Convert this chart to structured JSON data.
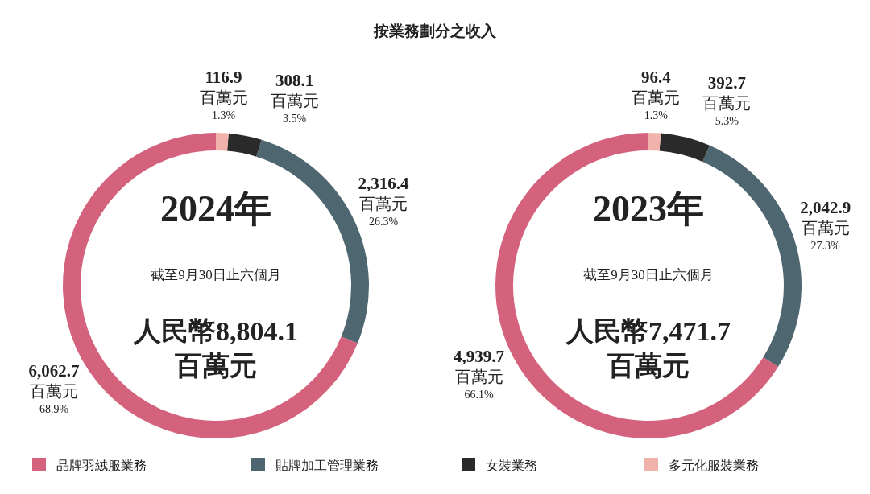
{
  "chart_data": [
    {
      "type": "donut",
      "title": "2024年",
      "subtitle": "截至9月30日止六個月",
      "annotations": [
        "按業務劃分之收入",
        "人民幣8,804.1\n百萬元"
      ],
      "categories": [
        "品牌羽絨服業務",
        "貼牌加工管理業務",
        "女裝業務",
        "多元化服裝業務"
      ],
      "values": [
        6062.7,
        2316.4,
        308.1,
        116.9
      ],
      "value_labels": [
        "6,062.7\n百萬元\n68.9%",
        "2,316.4\n百萬元\n26.3%",
        "308.1\n百萬元\n3.5%",
        "116.9\n百萬元\n1.3%"
      ],
      "colors": [
        "#d4627c",
        "#4e6670",
        "#2a2a2a",
        "#f0b2ab"
      ],
      "legend": "bottom"
    },
    {
      "type": "donut",
      "title": "2023年",
      "subtitle": "截至9月30日止六個月",
      "annotations": [
        "人民幣7,471.7\n百萬元"
      ],
      "categories": [
        null,
        null,
        null,
        null
      ],
      "values": [
        4939.7,
        2042.9,
        392.7,
        96.4
      ],
      "value_labels": [
        "4,939.7\n百萬元\n66.1%",
        "2,042.9\n百萬元\n27.3%",
        "392.7\n百萬元\n5.3%",
        "96.4\n百萬元\n1.3%"
      ],
      "colors": [
        "#d4627c",
        "#4e6670",
        "#2a2a2a",
        "#f0b2ab"
      ]
    }
  ]
}
